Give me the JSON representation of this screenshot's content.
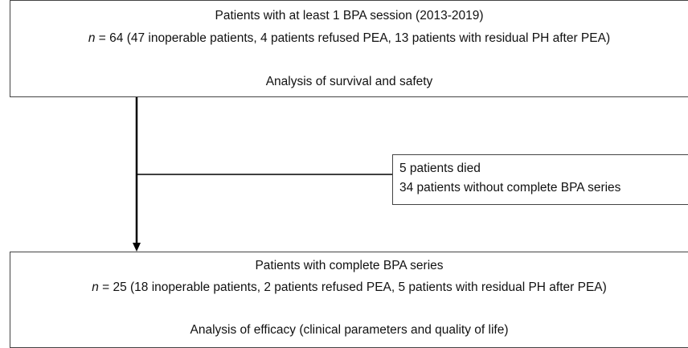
{
  "nodes": [
    {
      "title": "Patients with at least 1 BPA session (2013-2019)",
      "n_label": "n",
      "count_text": " = 64 (47 inoperable patients, 4 patients refused PEA, 13 patients with residual PH after PEA)",
      "analysis": "Analysis of survival and safety"
    },
    {
      "lines": [
        "5 patients died",
        "34 patients without complete BPA series"
      ]
    },
    {
      "title": "Patients with complete BPA series",
      "n_label": "n",
      "count_text": " = 25 (18 inoperable patients, 2 patients refused PEA, 5 patients with residual PH after PEA)",
      "analysis": "Analysis of efficacy (clinical parameters and quality of life)"
    }
  ]
}
